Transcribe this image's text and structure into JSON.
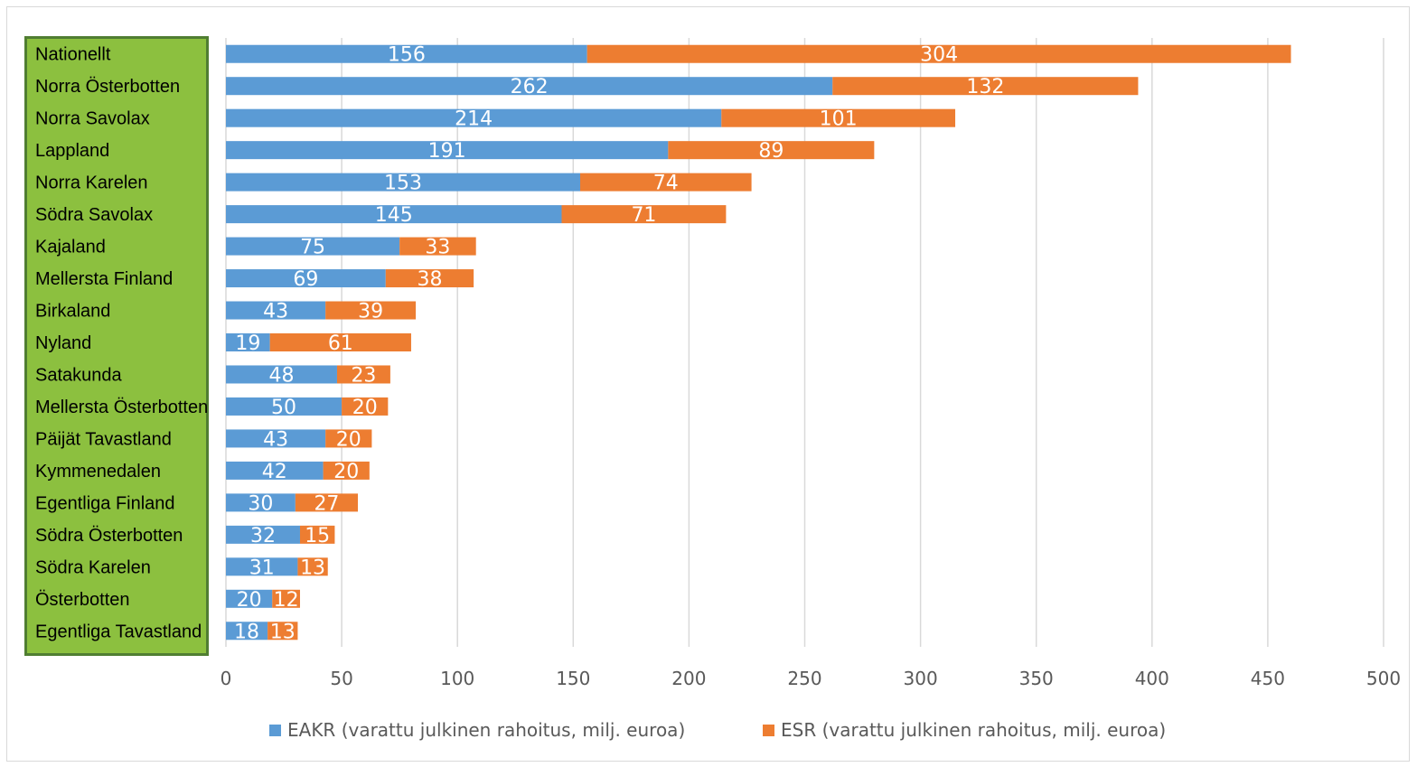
{
  "chart_data": {
    "type": "bar",
    "orientation": "horizontal",
    "stacked": true,
    "categories": [
      "Nationellt",
      "Norra Österbotten",
      "Norra Savolax",
      "Lappland",
      "Norra Karelen",
      "Södra Savolax",
      "Kajaland",
      "Mellersta Finland",
      "Birkaland",
      "Nyland",
      "Satakunda",
      "Mellersta Österbotten",
      "Päijät Tavastland",
      "Kymmenedalen",
      "Egentliga Finland",
      "Södra Österbotten",
      "Södra Karelen",
      "Österbotten",
      "Egentliga Tavastland"
    ],
    "series": [
      {
        "name": "EAKR (varattu julkinen rahoitus, milj. euroa)",
        "color": "#5b9bd5",
        "values": [
          156,
          262,
          214,
          191,
          153,
          145,
          75,
          69,
          43,
          19,
          48,
          50,
          43,
          42,
          30,
          32,
          31,
          20,
          18
        ]
      },
      {
        "name": "ESR (varattu julkinen rahoitus, milj. euroa)",
        "color": "#ed7d31",
        "values": [
          304,
          132,
          101,
          89,
          74,
          71,
          33,
          38,
          39,
          61,
          23,
          20,
          20,
          20,
          27,
          15,
          13,
          12,
          13
        ]
      }
    ],
    "xlim": [
      0,
      500
    ],
    "xticks": [
      0,
      50,
      100,
      150,
      200,
      250,
      300,
      350,
      400,
      450,
      500
    ],
    "grid": "vertical",
    "legend_position": "bottom",
    "label_panel_color": "#8cc03f",
    "label_panel_border": "#507e32"
  }
}
